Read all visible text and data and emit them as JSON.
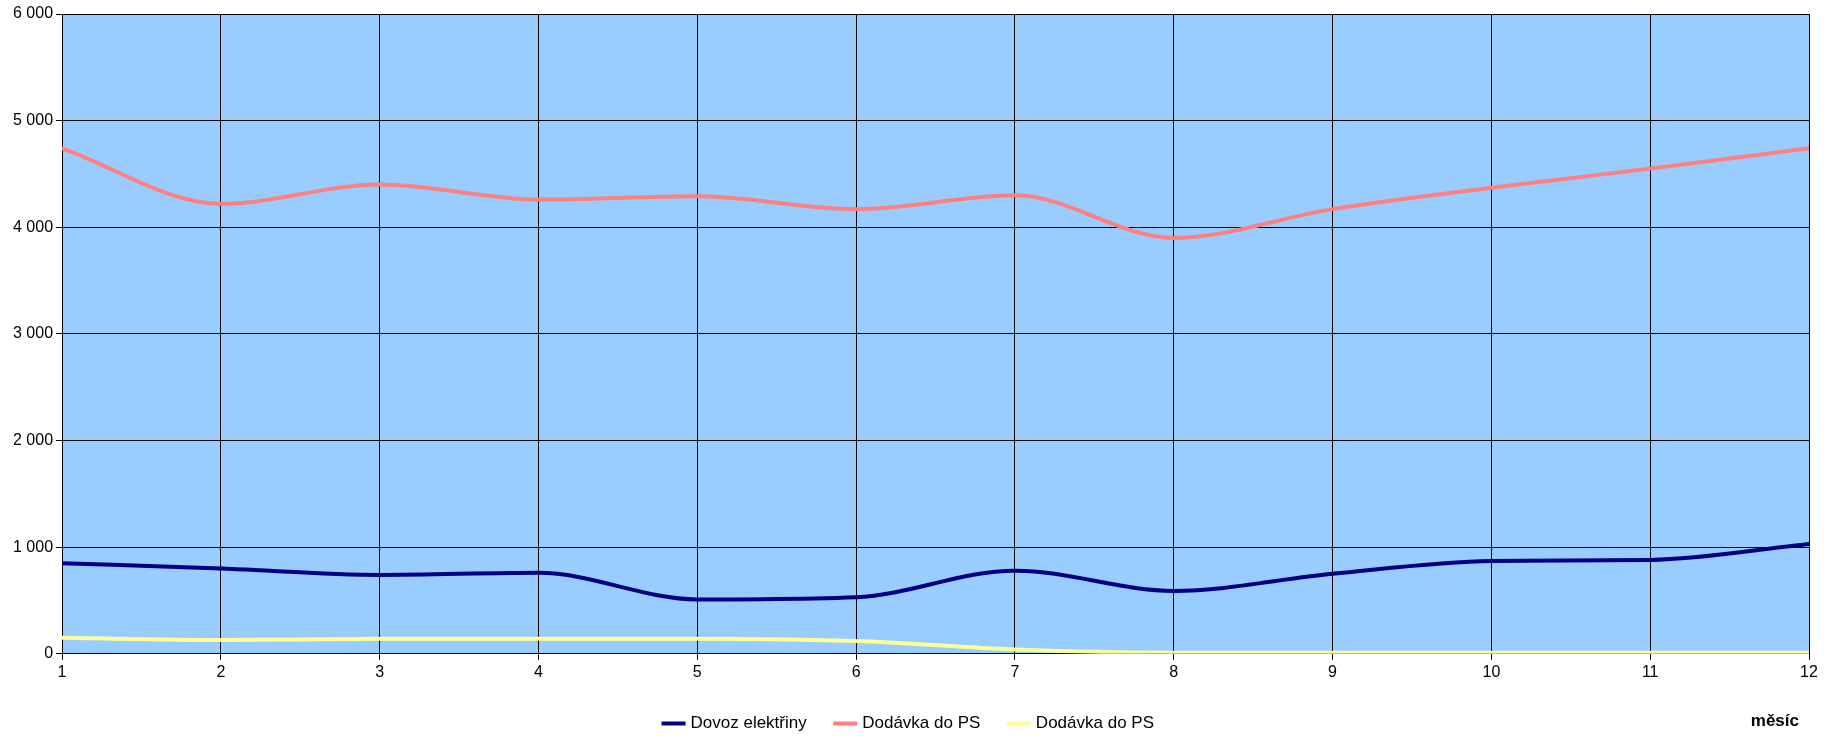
{
  "chart_data": {
    "type": "line",
    "xlabel": "měsíc",
    "x": [
      1,
      2,
      3,
      4,
      5,
      6,
      7,
      8,
      9,
      10,
      11,
      12
    ],
    "xlim": [
      1,
      12
    ],
    "xticks": [
      1,
      2,
      3,
      4,
      5,
      6,
      7,
      8,
      9,
      10,
      11,
      12
    ],
    "ylim": [
      0,
      6000
    ],
    "yticks": [
      {
        "value": 0,
        "label": "0"
      },
      {
        "value": 1000,
        "label": "1 000"
      },
      {
        "value": 2000,
        "label": "2 000"
      },
      {
        "value": 3000,
        "label": "3 000"
      },
      {
        "value": 4000,
        "label": "4 000"
      },
      {
        "value": 5000,
        "label": "5 000"
      },
      {
        "value": 6000,
        "label": "6 000"
      }
    ],
    "grid": true,
    "legend": "bottom",
    "marker": "none",
    "series": [
      {
        "name": "Dovoz elektřiny",
        "color": "#000080",
        "values": [
          850,
          800,
          740,
          760,
          510,
          530,
          780,
          590,
          750,
          870,
          880,
          1030
        ]
      },
      {
        "name": "Dodávka do PS",
        "color": "#ff8080",
        "values": [
          4740,
          4220,
          4400,
          4260,
          4290,
          4170,
          4300,
          3900,
          4170,
          4370,
          4550,
          4740
        ]
      },
      {
        "name": "Dodávka do PS",
        "color": "#ffff99",
        "values": [
          150,
          130,
          140,
          140,
          140,
          120,
          40,
          10,
          10,
          10,
          10,
          10
        ]
      }
    ]
  }
}
